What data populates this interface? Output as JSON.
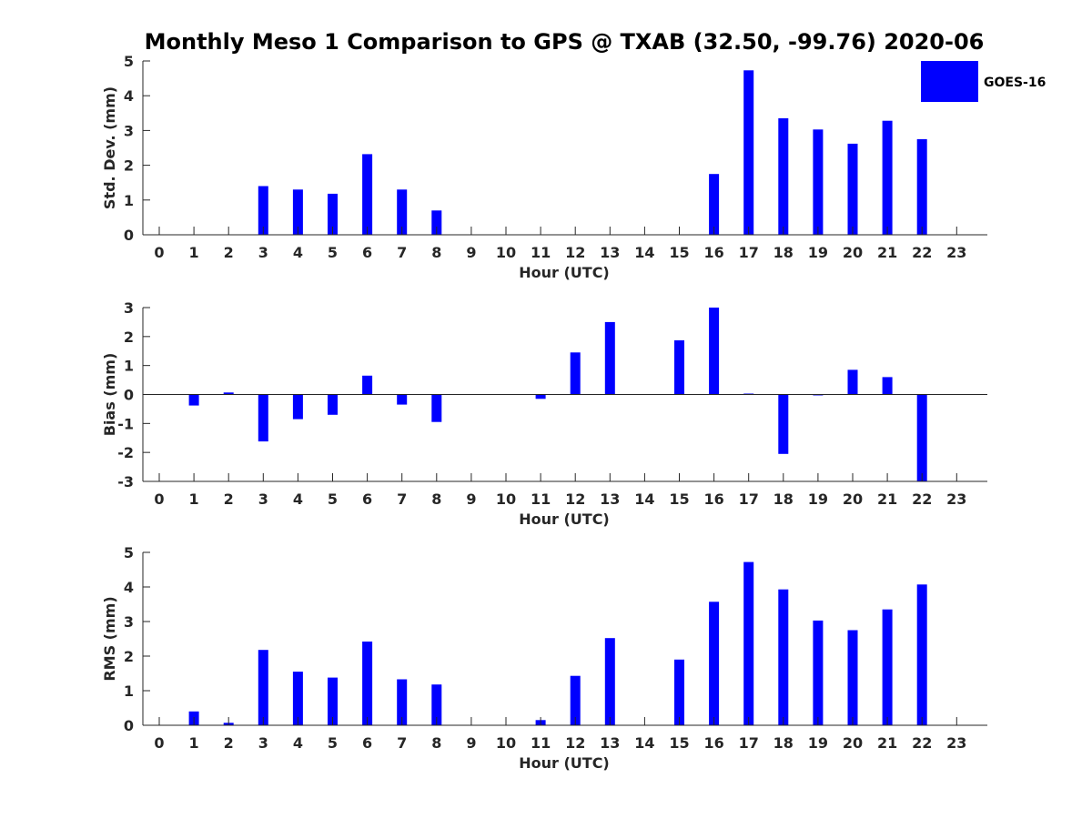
{
  "figure": {
    "title": "Monthly Meso 1 Comparison to GPS @ TXAB (32.50, -99.76) 2020-06",
    "legend": {
      "label": "GOES-16",
      "placement": "top-right"
    },
    "bar_color": "#0000ff"
  },
  "chart_data": [
    {
      "type": "bar",
      "title": "Monthly Meso 1 Comparison to GPS @ TXAB (32.50, -99.76) 2020-06",
      "xlabel": "Hour (UTC)",
      "ylabel": "Std. Dev. (mm)",
      "ylim": [
        0,
        5
      ],
      "yticks": [
        0,
        1,
        2,
        3,
        4,
        5
      ],
      "categories": [
        "0",
        "1",
        "2",
        "3",
        "4",
        "5",
        "6",
        "7",
        "8",
        "9",
        "10",
        "11",
        "12",
        "13",
        "14",
        "15",
        "16",
        "17",
        "18",
        "19",
        "20",
        "21",
        "22",
        "23"
      ],
      "series": [
        {
          "name": "GOES-16",
          "values": [
            null,
            null,
            null,
            1.4,
            1.3,
            1.18,
            2.32,
            1.3,
            0.7,
            null,
            null,
            null,
            null,
            null,
            null,
            null,
            1.75,
            4.73,
            3.35,
            3.03,
            2.62,
            3.28,
            2.75,
            null
          ]
        }
      ]
    },
    {
      "type": "bar",
      "xlabel": "Hour (UTC)",
      "ylabel": "Bias (mm)",
      "ylim": [
        -3,
        3
      ],
      "yticks": [
        -3,
        -2,
        -1,
        0,
        1,
        2,
        3
      ],
      "categories": [
        "0",
        "1",
        "2",
        "3",
        "4",
        "5",
        "6",
        "7",
        "8",
        "9",
        "10",
        "11",
        "12",
        "13",
        "14",
        "15",
        "16",
        "17",
        "18",
        "19",
        "20",
        "21",
        "22",
        "23"
      ],
      "series": [
        {
          "name": "GOES-16",
          "values": [
            null,
            -0.38,
            0.07,
            -1.62,
            -0.85,
            -0.7,
            0.65,
            -0.35,
            -0.95,
            null,
            null,
            -0.15,
            1.45,
            2.5,
            null,
            1.87,
            3.0,
            0.03,
            -2.05,
            -0.03,
            0.85,
            0.6,
            -3.0,
            null
          ]
        }
      ]
    },
    {
      "type": "bar",
      "xlabel": "Hour (UTC)",
      "ylabel": "RMS (mm)",
      "ylim": [
        0,
        5
      ],
      "yticks": [
        0,
        1,
        2,
        3,
        4,
        5
      ],
      "categories": [
        "0",
        "1",
        "2",
        "3",
        "4",
        "5",
        "6",
        "7",
        "8",
        "9",
        "10",
        "11",
        "12",
        "13",
        "14",
        "15",
        "16",
        "17",
        "18",
        "19",
        "20",
        "21",
        "22",
        "23"
      ],
      "series": [
        {
          "name": "GOES-16",
          "values": [
            null,
            0.4,
            0.07,
            2.18,
            1.55,
            1.38,
            2.42,
            1.33,
            1.18,
            null,
            null,
            0.15,
            1.43,
            2.52,
            null,
            1.9,
            3.57,
            4.72,
            3.93,
            3.03,
            2.75,
            3.35,
            4.07,
            null
          ]
        }
      ]
    }
  ]
}
